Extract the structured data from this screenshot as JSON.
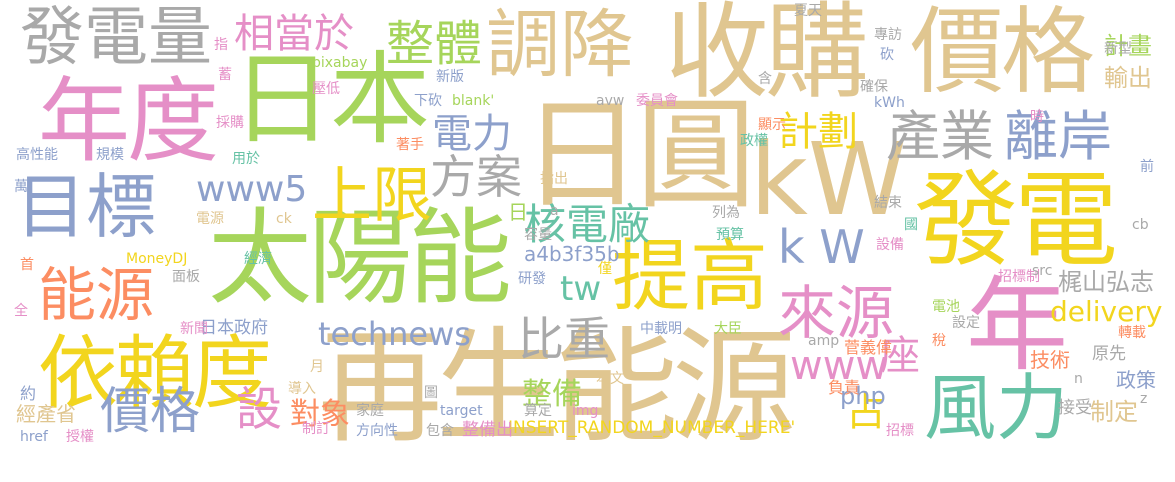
{
  "palette": {
    "tan": "#e0c690",
    "gray": "#a9a9a9",
    "pink": "#e58fc7",
    "green": "#a6d55b",
    "yellow": "#f2d51e",
    "blue": "#8da0cb",
    "teal": "#66c2a5",
    "orange": "#fc8d62"
  },
  "words": [
    {
      "text": "再生能源",
      "color": "tan"
    },
    {
      "text": "日圓",
      "color": "tan"
    },
    {
      "text": "收購",
      "color": "tan"
    },
    {
      "text": "太陽能",
      "color": "green"
    },
    {
      "text": "日本",
      "color": "green"
    },
    {
      "text": "價格",
      "color": "tan"
    },
    {
      "text": "發電",
      "color": "yellow"
    },
    {
      "text": "kW",
      "color": "tan"
    },
    {
      "text": "年度",
      "color": "pink"
    },
    {
      "text": "調降",
      "color": "tan"
    },
    {
      "text": "依賴度",
      "color": "yellow"
    },
    {
      "text": "發電量",
      "color": "gray"
    },
    {
      "text": "目標",
      "color": "blue"
    },
    {
      "text": "年",
      "color": "pink"
    },
    {
      "text": "提高",
      "color": "yellow"
    },
    {
      "text": "能源",
      "color": "orange"
    },
    {
      "text": "風力",
      "color": "teal"
    },
    {
      "text": "來源",
      "color": "pink"
    },
    {
      "text": "上限",
      "color": "yellow"
    },
    {
      "text": "價格",
      "color": "blue"
    },
    {
      "text": "離岸",
      "color": "blue"
    },
    {
      "text": "產業",
      "color": "gray"
    },
    {
      "text": "整體",
      "color": "green"
    },
    {
      "text": "相當於",
      "color": "pink"
    },
    {
      "text": "方案",
      "color": "gray"
    },
    {
      "text": "比重",
      "color": "gray"
    },
    {
      "text": "核電廠",
      "color": "teal"
    },
    {
      "text": "www5",
      "color": "blue"
    },
    {
      "text": "計劃",
      "color": "yellow"
    },
    {
      "text": "電力",
      "color": "blue"
    },
    {
      "text": "www",
      "color": "pink"
    },
    {
      "text": "k W",
      "color": "blue"
    },
    {
      "text": "座",
      "color": "pink"
    },
    {
      "text": "technews",
      "color": "blue"
    },
    {
      "text": "設",
      "color": "pink"
    },
    {
      "text": "對象",
      "color": "orange"
    },
    {
      "text": "整備",
      "color": "green"
    },
    {
      "text": "占",
      "color": "yellow"
    },
    {
      "text": "tw",
      "color": "teal"
    },
    {
      "text": "delivery",
      "color": "yellow"
    },
    {
      "text": "php",
      "color": "blue"
    },
    {
      "text": "制定",
      "color": "tan"
    },
    {
      "text": "輸出",
      "color": "tan"
    },
    {
      "text": "計畫",
      "color": "green"
    },
    {
      "text": "梶山弘志",
      "color": "gray"
    },
    {
      "text": "a4b3f35b",
      "color": "blue"
    },
    {
      "text": "INSERT_RANDOM_NUMBER_HERE'",
      "color": "yellow"
    },
    {
      "text": "經產省",
      "color": "tan"
    },
    {
      "text": "日本政府",
      "color": "blue"
    },
    {
      "text": "整備出",
      "color": "pink"
    },
    {
      "text": "技術",
      "color": "orange"
    },
    {
      "text": "政策",
      "color": "blue"
    },
    {
      "text": "接受",
      "color": "gray"
    },
    {
      "text": "原先",
      "color": "gray"
    },
    {
      "text": "菅義偉",
      "color": "orange"
    },
    {
      "text": "負責",
      "color": "orange"
    },
    {
      "text": "pixabay",
      "color": "green"
    },
    {
      "text": "新版",
      "color": "blue"
    },
    {
      "text": "壓低",
      "color": "pink"
    },
    {
      "text": "採購",
      "color": "pink"
    },
    {
      "text": "下砍",
      "color": "blue"
    },
    {
      "text": "blank'",
      "color": "green"
    },
    {
      "text": "avw",
      "color": "gray"
    },
    {
      "text": "委員會",
      "color": "pink"
    },
    {
      "text": "夏天",
      "color": "gray"
    },
    {
      "text": "專訪",
      "color": "gray"
    },
    {
      "text": "新型",
      "color": "gray"
    },
    {
      "text": "kWh",
      "color": "blue"
    },
    {
      "text": "確保",
      "color": "gray"
    },
    {
      "text": "顯示",
      "color": "orange"
    },
    {
      "text": "政權",
      "color": "teal"
    },
    {
      "text": "高性能",
      "color": "blue"
    },
    {
      "text": "規模",
      "color": "blue"
    },
    {
      "text": "用於",
      "color": "teal"
    },
    {
      "text": "著手",
      "color": "orange"
    },
    {
      "text": "指出",
      "color": "tan"
    },
    {
      "text": "容量",
      "color": "gray"
    },
    {
      "text": "預算",
      "color": "teal"
    },
    {
      "text": "列為",
      "color": "gray"
    },
    {
      "text": "結束",
      "color": "gray"
    },
    {
      "text": "設備",
      "color": "pink"
    },
    {
      "text": "電源",
      "color": "tan"
    },
    {
      "text": "ck",
      "color": "tan"
    },
    {
      "text": "MoneyDJ",
      "color": "yellow"
    },
    {
      "text": "經濟",
      "color": "teal"
    },
    {
      "text": "面板",
      "color": "gray"
    },
    {
      "text": "研發",
      "color": "blue"
    },
    {
      "text": "招標制",
      "color": "pink"
    },
    {
      "text": "電池",
      "color": "green"
    },
    {
      "text": "設定",
      "color": "gray"
    },
    {
      "text": "中載明",
      "color": "blue"
    },
    {
      "text": "大臣",
      "color": "green"
    },
    {
      "text": "新聞",
      "color": "pink"
    },
    {
      "text": "amp",
      "color": "gray"
    },
    {
      "text": "稅",
      "color": "orange"
    },
    {
      "text": "轉載",
      "color": "orange"
    },
    {
      "text": "導入",
      "color": "tan"
    },
    {
      "text": "本文",
      "color": "tan"
    },
    {
      "text": "家庭",
      "color": "gray"
    },
    {
      "text": "target",
      "color": "blue"
    },
    {
      "text": "算定",
      "color": "gray"
    },
    {
      "text": "img",
      "color": "pink"
    },
    {
      "text": "href",
      "color": "blue"
    },
    {
      "text": "授權",
      "color": "pink"
    },
    {
      "text": "制訂",
      "color": "pink"
    },
    {
      "text": "方向性",
      "color": "blue"
    },
    {
      "text": "包含",
      "color": "gray"
    },
    {
      "text": "招標",
      "color": "pink"
    },
    {
      "text": "約",
      "color": "blue"
    },
    {
      "text": "src",
      "color": "gray"
    },
    {
      "text": "cb",
      "color": "gray"
    },
    {
      "text": "前",
      "color": "blue"
    },
    {
      "text": "萬",
      "color": "blue"
    },
    {
      "text": "全",
      "color": "pink"
    },
    {
      "text": "首",
      "color": "orange"
    },
    {
      "text": "時",
      "color": "pink"
    },
    {
      "text": "月",
      "color": "tan"
    },
    {
      "text": "n",
      "color": "gray"
    },
    {
      "text": "z",
      "color": "gray"
    },
    {
      "text": "a",
      "color": "gray"
    },
    {
      "text": "日",
      "color": "green"
    },
    {
      "text": "圖",
      "color": "gray"
    },
    {
      "text": "國",
      "color": "teal"
    },
    {
      "text": "僅",
      "color": "yellow"
    },
    {
      "text": "含",
      "color": "gray"
    },
    {
      "text": "砍",
      "color": "blue"
    },
    {
      "text": "蓄",
      "color": "pink"
    },
    {
      "text": "指",
      "color": "pink"
    }
  ]
}
